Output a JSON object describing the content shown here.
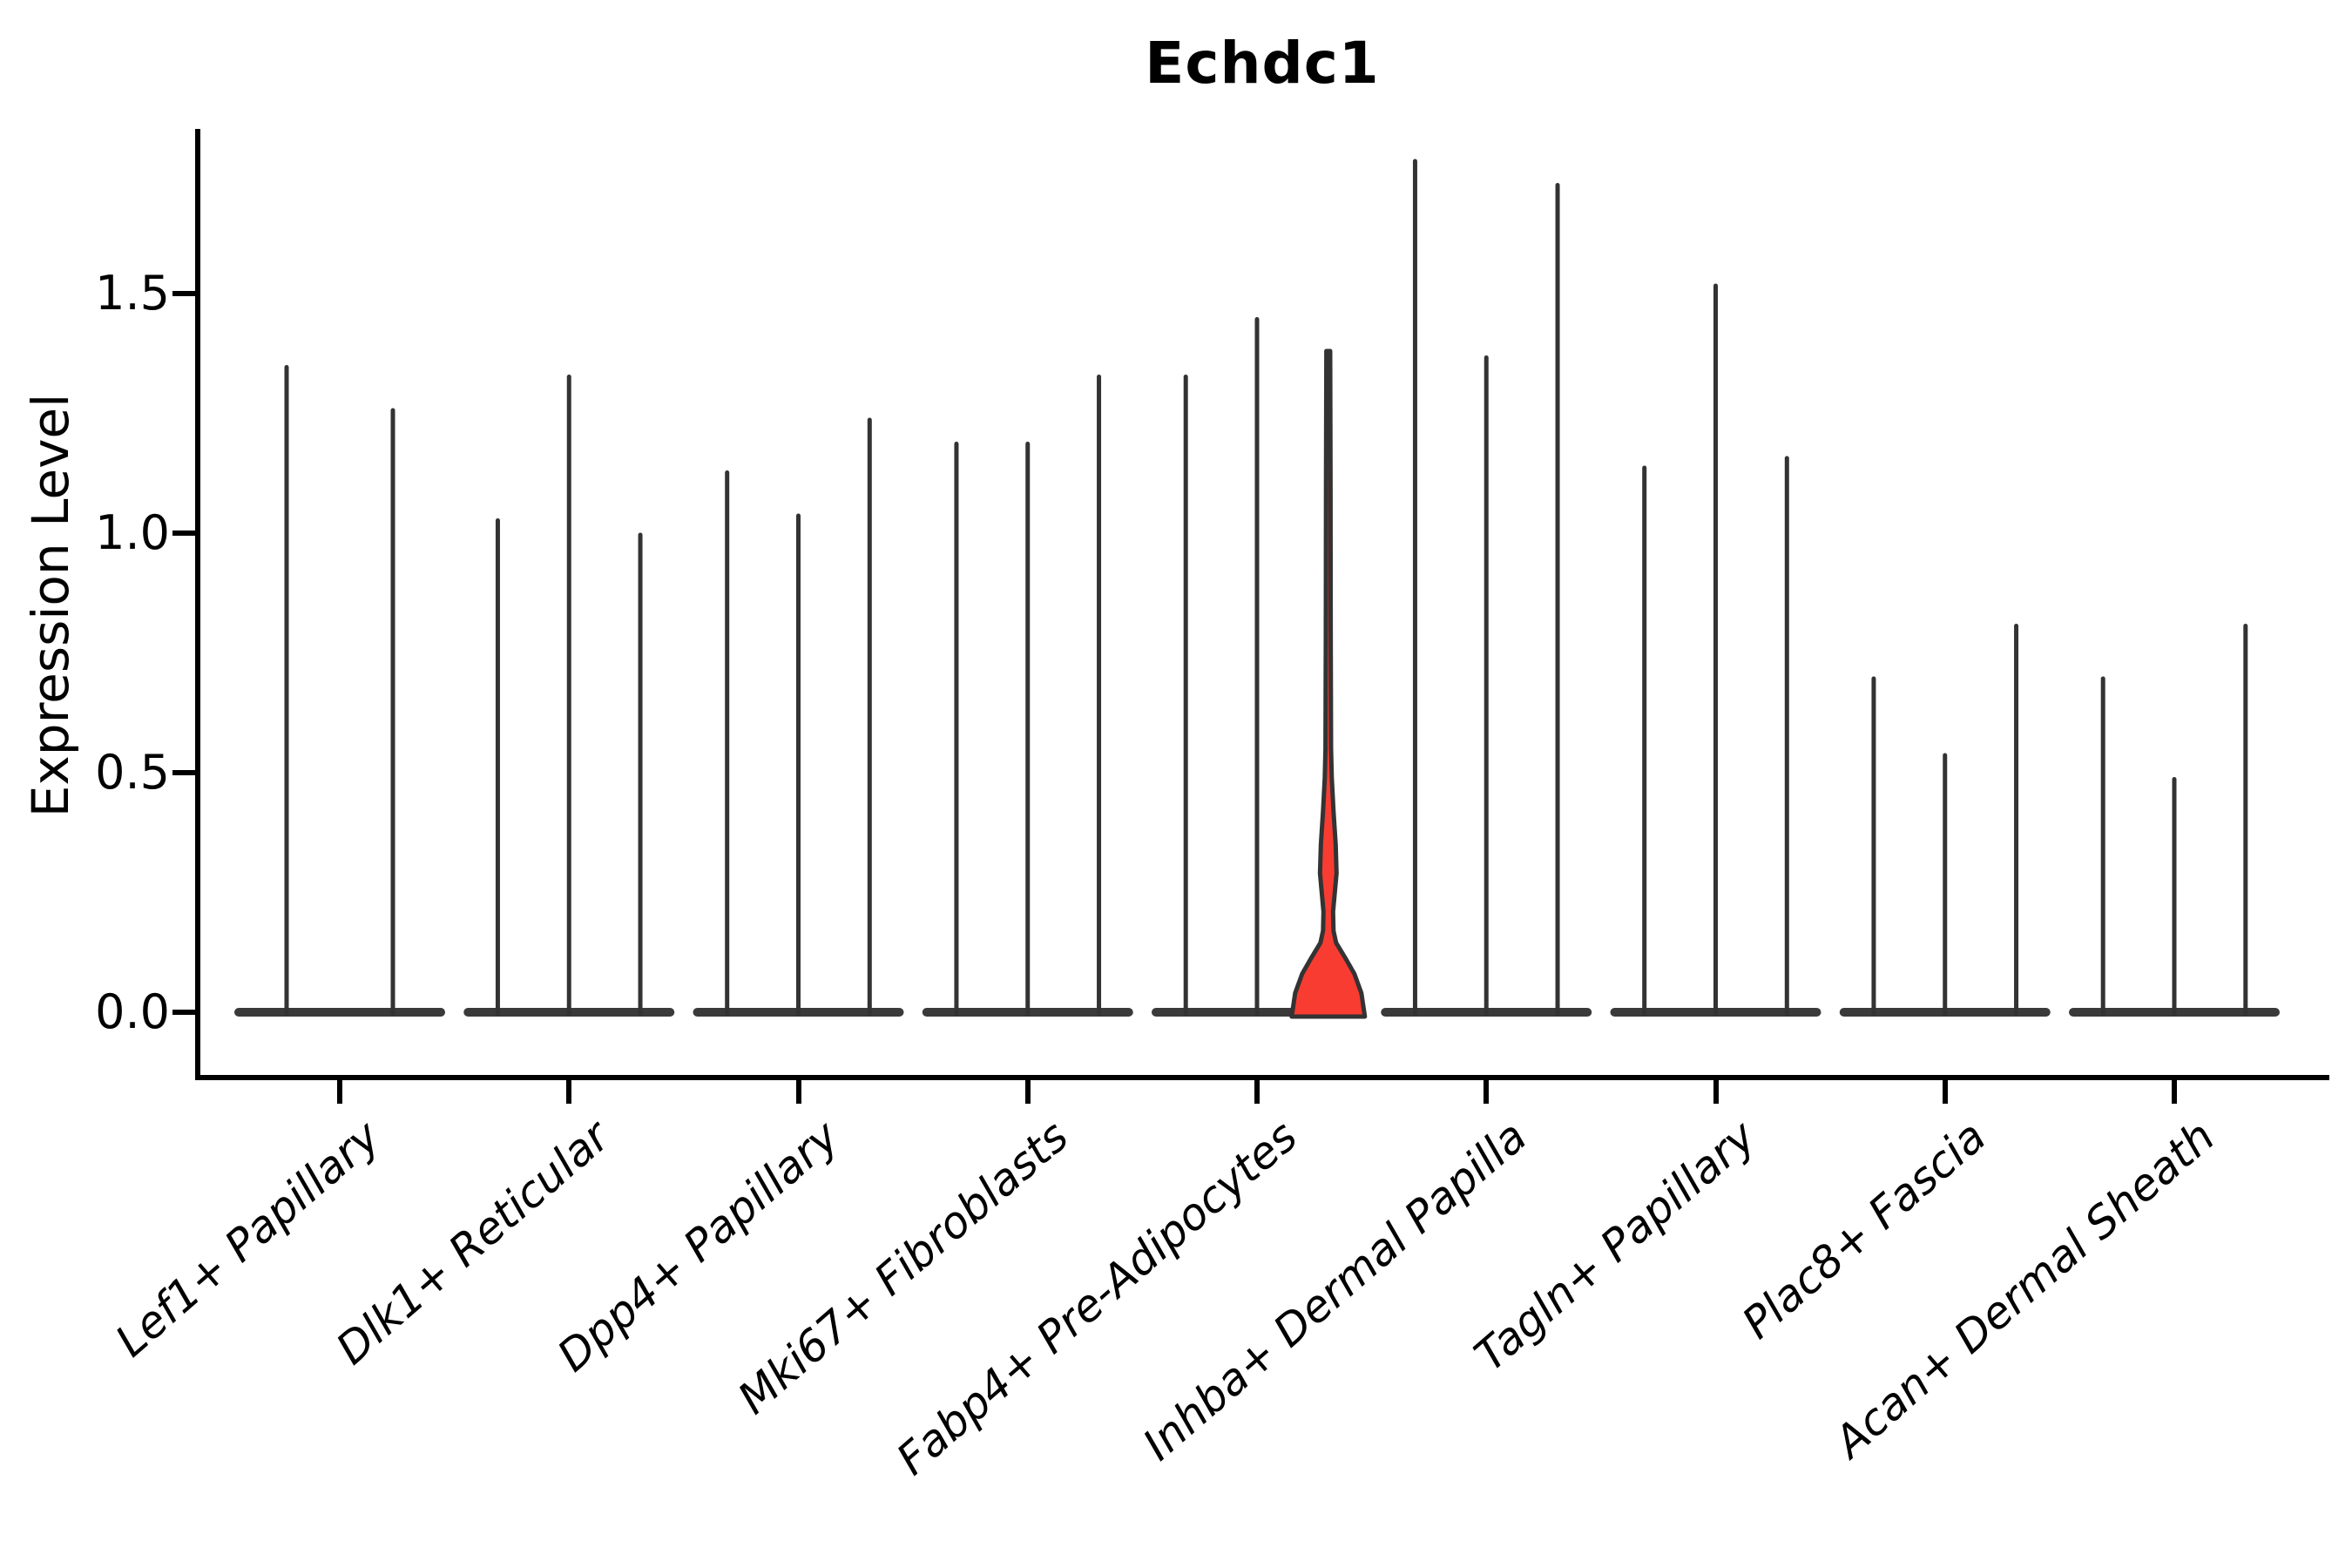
{
  "chart_data": {
    "type": "violin",
    "title": "Echdc1",
    "xlabel": "",
    "ylabel": "Expression Level",
    "ytick_labels": [
      "0.0",
      "0.5",
      "1.0",
      "1.5"
    ],
    "ytick_values": [
      0.0,
      0.5,
      1.0,
      1.5
    ],
    "ylim": [
      -0.14,
      1.85
    ],
    "grid": "off",
    "legend": "none",
    "categories": [
      "Lef1+ Papillary",
      "Dlk1+ Reticular",
      "Dpp4+ Papillary",
      "Mki67+ Fibroblasts",
      "Fabp4+ Pre-Adipocytes",
      "Inhba+ Dermal Papilla",
      "Tagln+ Papillary",
      "Plac8+ Fascia",
      "Acan+ Dermal Sheath"
    ],
    "groups": [
      {
        "category": "Lef1+ Papillary",
        "violin_maxima": [
          1.35,
          1.26
        ]
      },
      {
        "category": "Dlk1+ Reticular",
        "violin_maxima": [
          1.03,
          1.33,
          1.0
        ]
      },
      {
        "category": "Dpp4+ Papillary",
        "violin_maxima": [
          1.13,
          1.04,
          1.24
        ]
      },
      {
        "category": "Mki67+ Fibroblasts",
        "violin_maxima": [
          1.19,
          1.19,
          1.33
        ]
      },
      {
        "category": "Fabp4+ Pre-Adipocytes",
        "violin_maxima": [
          1.33,
          1.45,
          1.38
        ]
      },
      {
        "category": "Inhba+ Dermal Papilla",
        "violin_maxima": [
          1.78,
          1.37,
          1.73
        ]
      },
      {
        "category": "Tagln+ Papillary",
        "violin_maxima": [
          1.14,
          1.52,
          1.16
        ]
      },
      {
        "category": "Plac8+ Fascia",
        "violin_maxima": [
          0.7,
          0.54,
          0.81
        ]
      },
      {
        "category": "Acan+ Dermal Sheath",
        "violin_maxima": [
          0.7,
          0.49,
          0.81
        ]
      }
    ],
    "highlighted_violin": {
      "group_index": 4,
      "violin_index": 2,
      "category": "Fabp4+ Pre-Adipocytes",
      "max": 1.38,
      "profile_value_halfwidth": [
        [
          0.0,
          42
        ],
        [
          0.04,
          38
        ],
        [
          0.08,
          30
        ],
        [
          0.115,
          19
        ],
        [
          0.145,
          9
        ],
        [
          0.17,
          6.0
        ],
        [
          0.21,
          5.5
        ],
        [
          0.25,
          7.5
        ],
        [
          0.29,
          9.5
        ],
        [
          0.35,
          8.5
        ],
        [
          0.42,
          6.0
        ],
        [
          0.49,
          4.0
        ],
        [
          0.55,
          3.2
        ],
        [
          0.8,
          2.8
        ],
        [
          1.1,
          2.6
        ],
        [
          1.38,
          2.2
        ]
      ]
    },
    "colors": {
      "violin_stroke": "#333333",
      "baseline_body": "#3a3a3a",
      "highlight_fill": "#f93c32",
      "axis": "#000000",
      "text": "#000000",
      "background": "#ffffff"
    }
  }
}
